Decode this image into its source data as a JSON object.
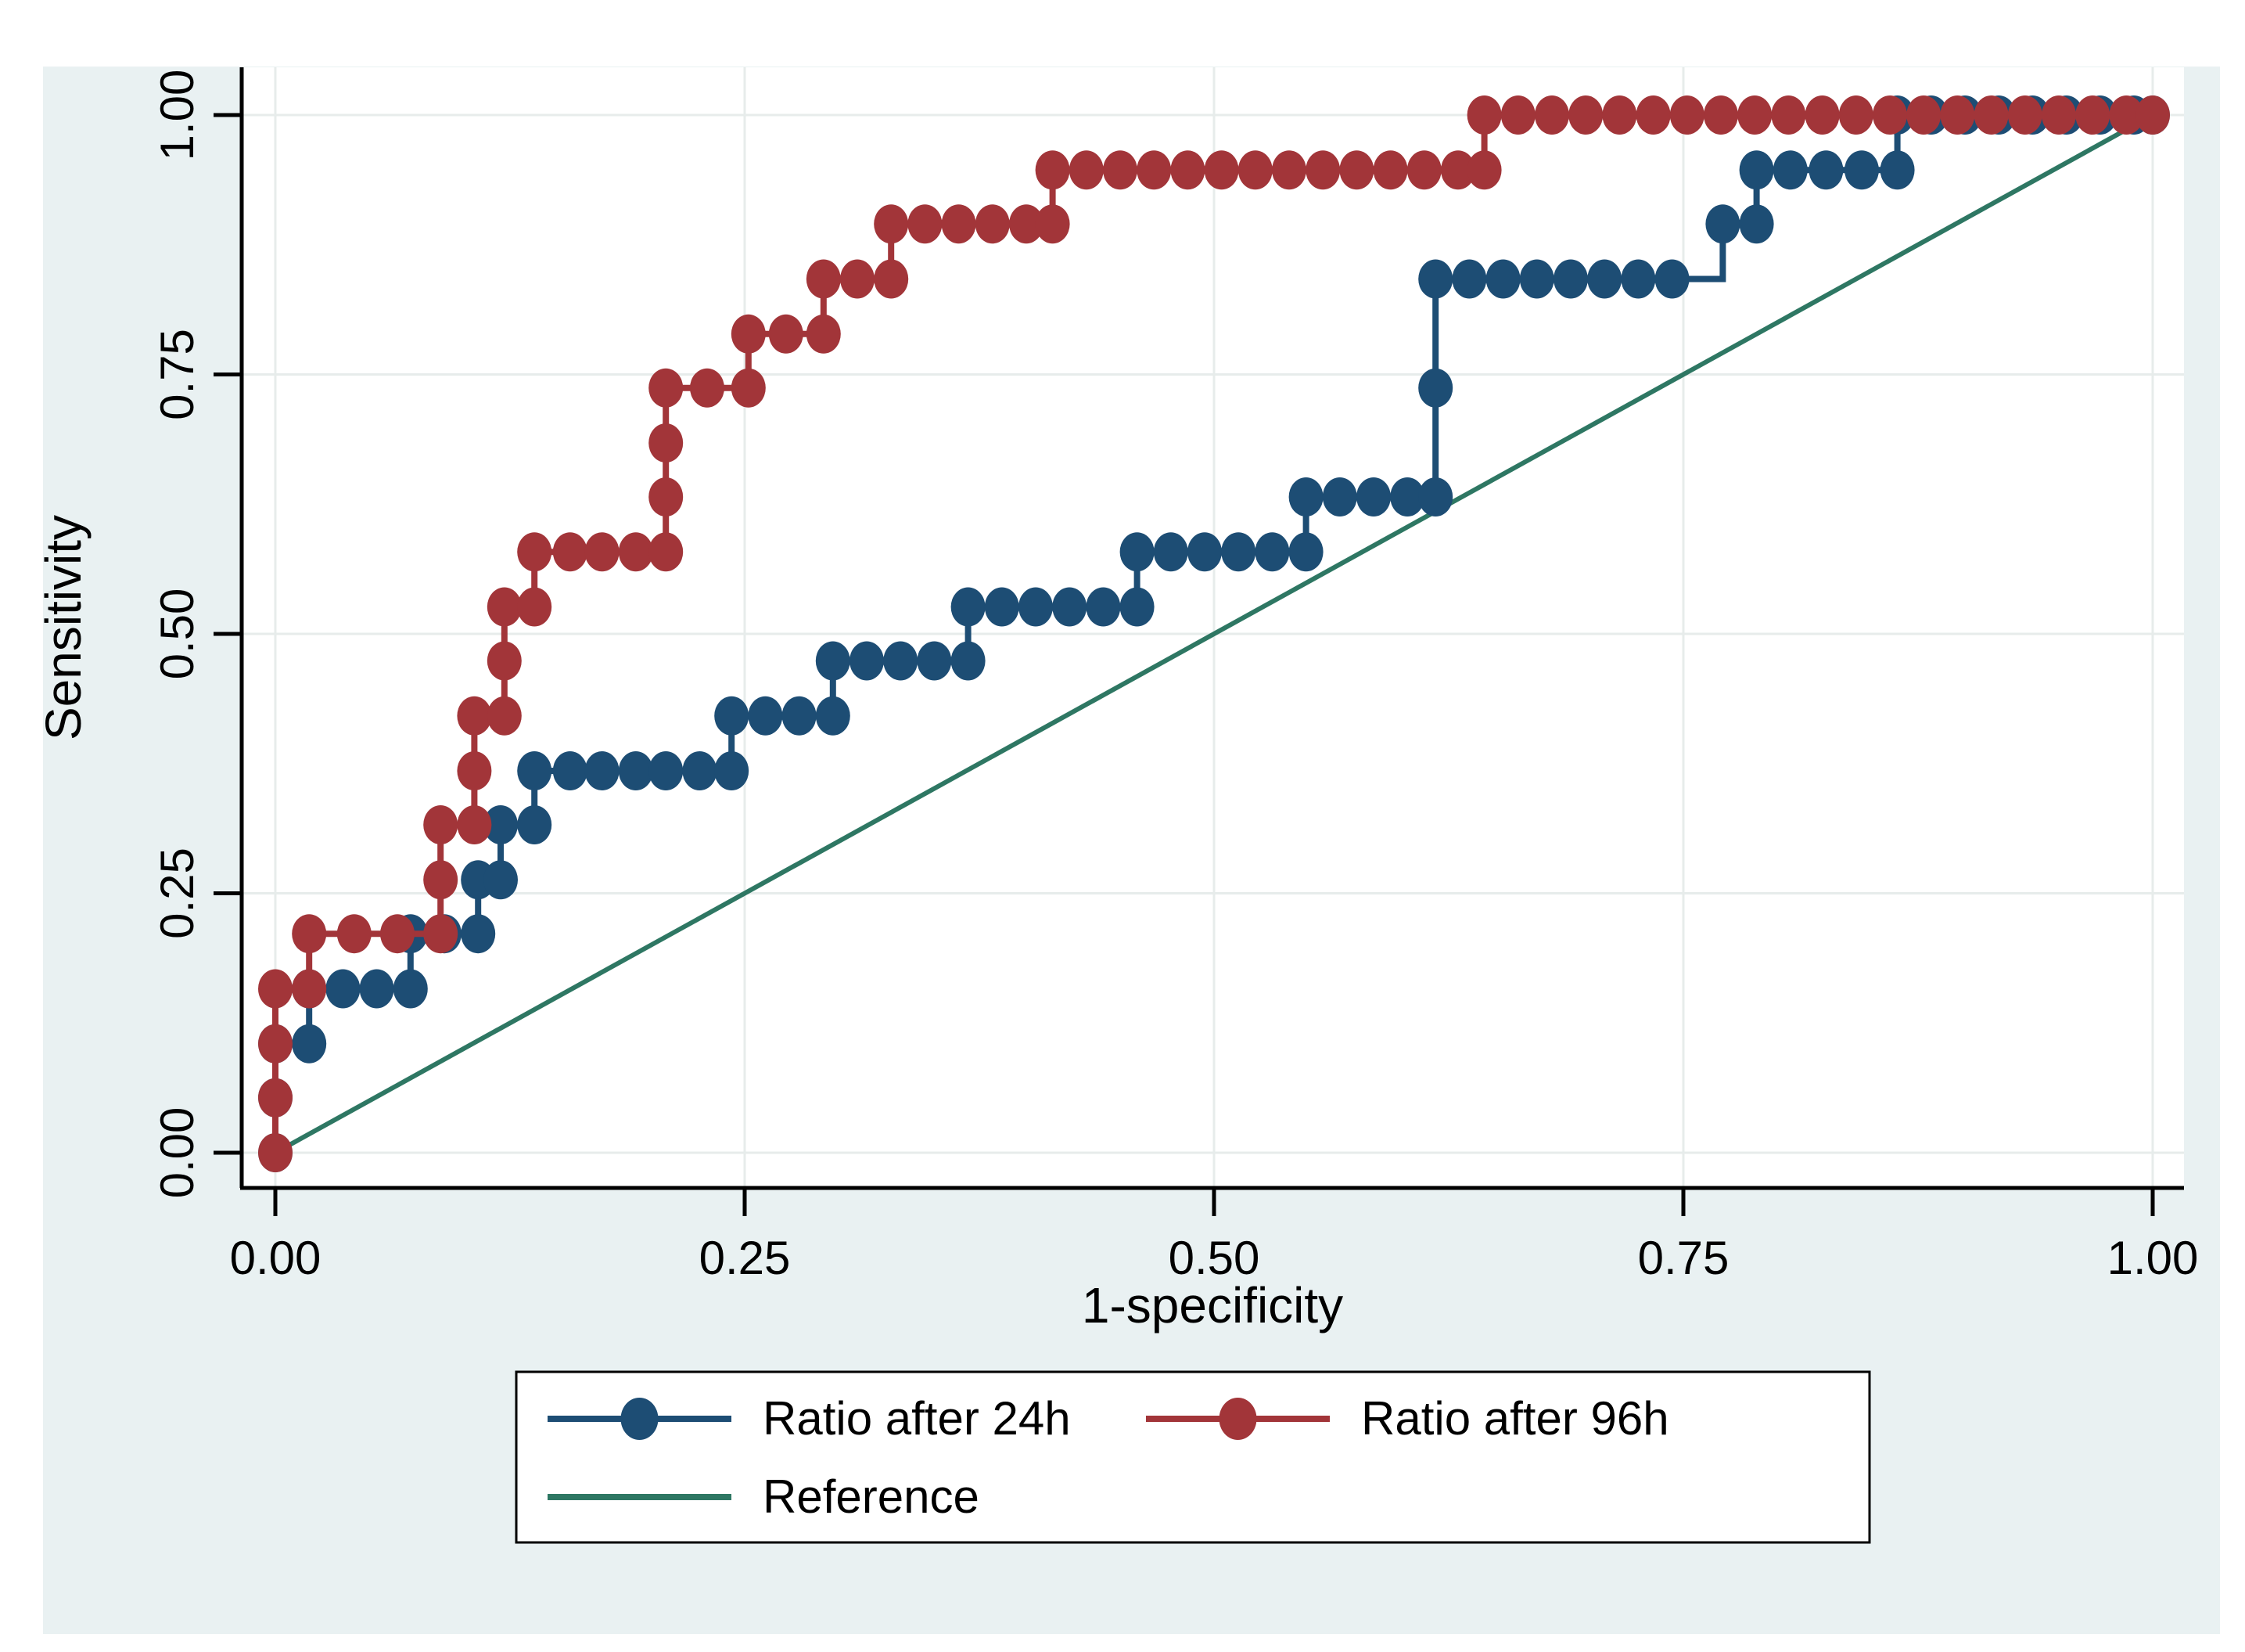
{
  "figure": {
    "background": "#e9f1f2",
    "plot_background": "#ffffff",
    "grid_color": "#e7eceb",
    "axis_color": "#000000",
    "text_color": "#000000"
  },
  "axes": {
    "x": {
      "title": "1-specificity",
      "tick_labels": [
        "0.00",
        "0.25",
        "0.50",
        "0.75",
        "1.00"
      ],
      "tick_values": [
        0,
        0.25,
        0.5,
        0.75,
        1
      ],
      "range": [
        0,
        1
      ]
    },
    "y": {
      "title": "Sensitivity",
      "tick_labels": [
        "0.00",
        "0.25",
        "0.50",
        "0.75",
        "1.00"
      ],
      "tick_values": [
        0,
        0.25,
        0.5,
        0.75,
        1
      ],
      "range": [
        0,
        1
      ]
    }
  },
  "legend": {
    "position": "bottom",
    "entries": [
      {
        "label": "Ratio after 24h",
        "color": "#1d4d74",
        "marker": true
      },
      {
        "label": "Ratio after 96h",
        "color": "#a23539",
        "marker": true
      },
      {
        "label": "Reference",
        "color": "#2e7763",
        "marker": false
      }
    ]
  },
  "chart_data": {
    "type": "line",
    "subtype": "roc_step",
    "title": "",
    "xlabel": "1-specificity",
    "ylabel": "Sensitivity",
    "xlim": [
      0,
      1
    ],
    "ylim": [
      0,
      1
    ],
    "grid": true,
    "legend_position": "bottom",
    "series": [
      {
        "name": "Ratio after 24h",
        "color": "#1d4d74",
        "marker": "circle",
        "step": true,
        "points": [
          [
            0.0,
            0.0
          ],
          [
            0.0,
            0.053
          ],
          [
            0.0,
            0.105
          ],
          [
            0.018,
            0.105
          ],
          [
            0.018,
            0.158
          ],
          [
            0.036,
            0.158
          ],
          [
            0.054,
            0.158
          ],
          [
            0.072,
            0.158
          ],
          [
            0.072,
            0.211
          ],
          [
            0.09,
            0.211
          ],
          [
            0.108,
            0.211
          ],
          [
            0.108,
            0.263
          ],
          [
            0.12,
            0.263
          ],
          [
            0.12,
            0.316
          ],
          [
            0.138,
            0.316
          ],
          [
            0.138,
            0.368
          ],
          [
            0.157,
            0.368
          ],
          [
            0.174,
            0.368
          ],
          [
            0.192,
            0.368
          ],
          [
            0.208,
            0.368
          ],
          [
            0.226,
            0.368
          ],
          [
            0.243,
            0.368
          ],
          [
            0.243,
            0.421
          ],
          [
            0.261,
            0.421
          ],
          [
            0.279,
            0.421
          ],
          [
            0.297,
            0.421
          ],
          [
            0.297,
            0.474
          ],
          [
            0.315,
            0.474
          ],
          [
            0.333,
            0.474
          ],
          [
            0.351,
            0.474
          ],
          [
            0.369,
            0.474
          ],
          [
            0.369,
            0.526
          ],
          [
            0.387,
            0.526
          ],
          [
            0.405,
            0.526
          ],
          [
            0.423,
            0.526
          ],
          [
            0.441,
            0.526
          ],
          [
            0.459,
            0.526
          ],
          [
            0.459,
            0.579
          ],
          [
            0.477,
            0.579
          ],
          [
            0.495,
            0.579
          ],
          [
            0.513,
            0.579
          ],
          [
            0.531,
            0.579
          ],
          [
            0.549,
            0.579
          ],
          [
            0.549,
            0.632
          ],
          [
            0.567,
            0.632
          ],
          [
            0.585,
            0.632
          ],
          [
            0.603,
            0.632
          ],
          [
            0.618,
            0.632
          ],
          [
            0.618,
            0.737
          ],
          [
            0.618,
            0.842
          ],
          [
            0.636,
            0.842
          ],
          [
            0.654,
            0.842
          ],
          [
            0.672,
            0.842
          ],
          [
            0.69,
            0.842
          ],
          [
            0.708,
            0.842
          ],
          [
            0.726,
            0.842
          ],
          [
            0.744,
            0.842
          ],
          [
            0.771,
            0.895
          ],
          [
            0.789,
            0.895
          ],
          [
            0.789,
            0.947
          ],
          [
            0.807,
            0.947
          ],
          [
            0.826,
            0.947
          ],
          [
            0.845,
            0.947
          ],
          [
            0.864,
            0.947
          ],
          [
            0.864,
            1.0
          ],
          [
            0.882,
            1.0
          ],
          [
            0.9,
            1.0
          ],
          [
            0.918,
            1.0
          ],
          [
            0.936,
            1.0
          ],
          [
            0.954,
            1.0
          ],
          [
            0.972,
            1.0
          ],
          [
            0.99,
            1.0
          ],
          [
            1.0,
            1.0
          ]
        ]
      },
      {
        "name": "Ratio after 96h",
        "color": "#a23539",
        "marker": "circle",
        "step": true,
        "points": [
          [
            0.0,
            0.0
          ],
          [
            0.0,
            0.053
          ],
          [
            0.0,
            0.105
          ],
          [
            0.0,
            0.158
          ],
          [
            0.018,
            0.158
          ],
          [
            0.018,
            0.211
          ],
          [
            0.042,
            0.211
          ],
          [
            0.065,
            0.211
          ],
          [
            0.088,
            0.211
          ],
          [
            0.088,
            0.263
          ],
          [
            0.088,
            0.316
          ],
          [
            0.106,
            0.316
          ],
          [
            0.106,
            0.368
          ],
          [
            0.106,
            0.421
          ],
          [
            0.122,
            0.421
          ],
          [
            0.122,
            0.474
          ],
          [
            0.122,
            0.526
          ],
          [
            0.138,
            0.526
          ],
          [
            0.138,
            0.579
          ],
          [
            0.157,
            0.579
          ],
          [
            0.174,
            0.579
          ],
          [
            0.192,
            0.579
          ],
          [
            0.208,
            0.579
          ],
          [
            0.208,
            0.632
          ],
          [
            0.208,
            0.684
          ],
          [
            0.208,
            0.737
          ],
          [
            0.23,
            0.737
          ],
          [
            0.252,
            0.737
          ],
          [
            0.252,
            0.789
          ],
          [
            0.272,
            0.789
          ],
          [
            0.292,
            0.789
          ],
          [
            0.292,
            0.842
          ],
          [
            0.31,
            0.842
          ],
          [
            0.328,
            0.842
          ],
          [
            0.328,
            0.895
          ],
          [
            0.346,
            0.895
          ],
          [
            0.364,
            0.895
          ],
          [
            0.382,
            0.895
          ],
          [
            0.4,
            0.895
          ],
          [
            0.414,
            0.895
          ],
          [
            0.414,
            0.947
          ],
          [
            0.432,
            0.947
          ],
          [
            0.45,
            0.947
          ],
          [
            0.468,
            0.947
          ],
          [
            0.486,
            0.947
          ],
          [
            0.504,
            0.947
          ],
          [
            0.522,
            0.947
          ],
          [
            0.54,
            0.947
          ],
          [
            0.558,
            0.947
          ],
          [
            0.576,
            0.947
          ],
          [
            0.594,
            0.947
          ],
          [
            0.612,
            0.947
          ],
          [
            0.63,
            0.947
          ],
          [
            0.644,
            0.947
          ],
          [
            0.644,
            1.0
          ],
          [
            0.662,
            1.0
          ],
          [
            0.68,
            1.0
          ],
          [
            0.698,
            1.0
          ],
          [
            0.716,
            1.0
          ],
          [
            0.734,
            1.0
          ],
          [
            0.752,
            1.0
          ],
          [
            0.77,
            1.0
          ],
          [
            0.788,
            1.0
          ],
          [
            0.806,
            1.0
          ],
          [
            0.824,
            1.0
          ],
          [
            0.842,
            1.0
          ],
          [
            0.86,
            1.0
          ],
          [
            0.878,
            1.0
          ],
          [
            0.896,
            1.0
          ],
          [
            0.914,
            1.0
          ],
          [
            0.932,
            1.0
          ],
          [
            0.95,
            1.0
          ],
          [
            0.968,
            1.0
          ],
          [
            0.986,
            1.0
          ],
          [
            1.0,
            1.0
          ]
        ]
      },
      {
        "name": "Reference",
        "color": "#2e7763",
        "marker": null,
        "step": false,
        "points": [
          [
            0,
            0
          ],
          [
            1,
            1
          ]
        ]
      }
    ]
  }
}
